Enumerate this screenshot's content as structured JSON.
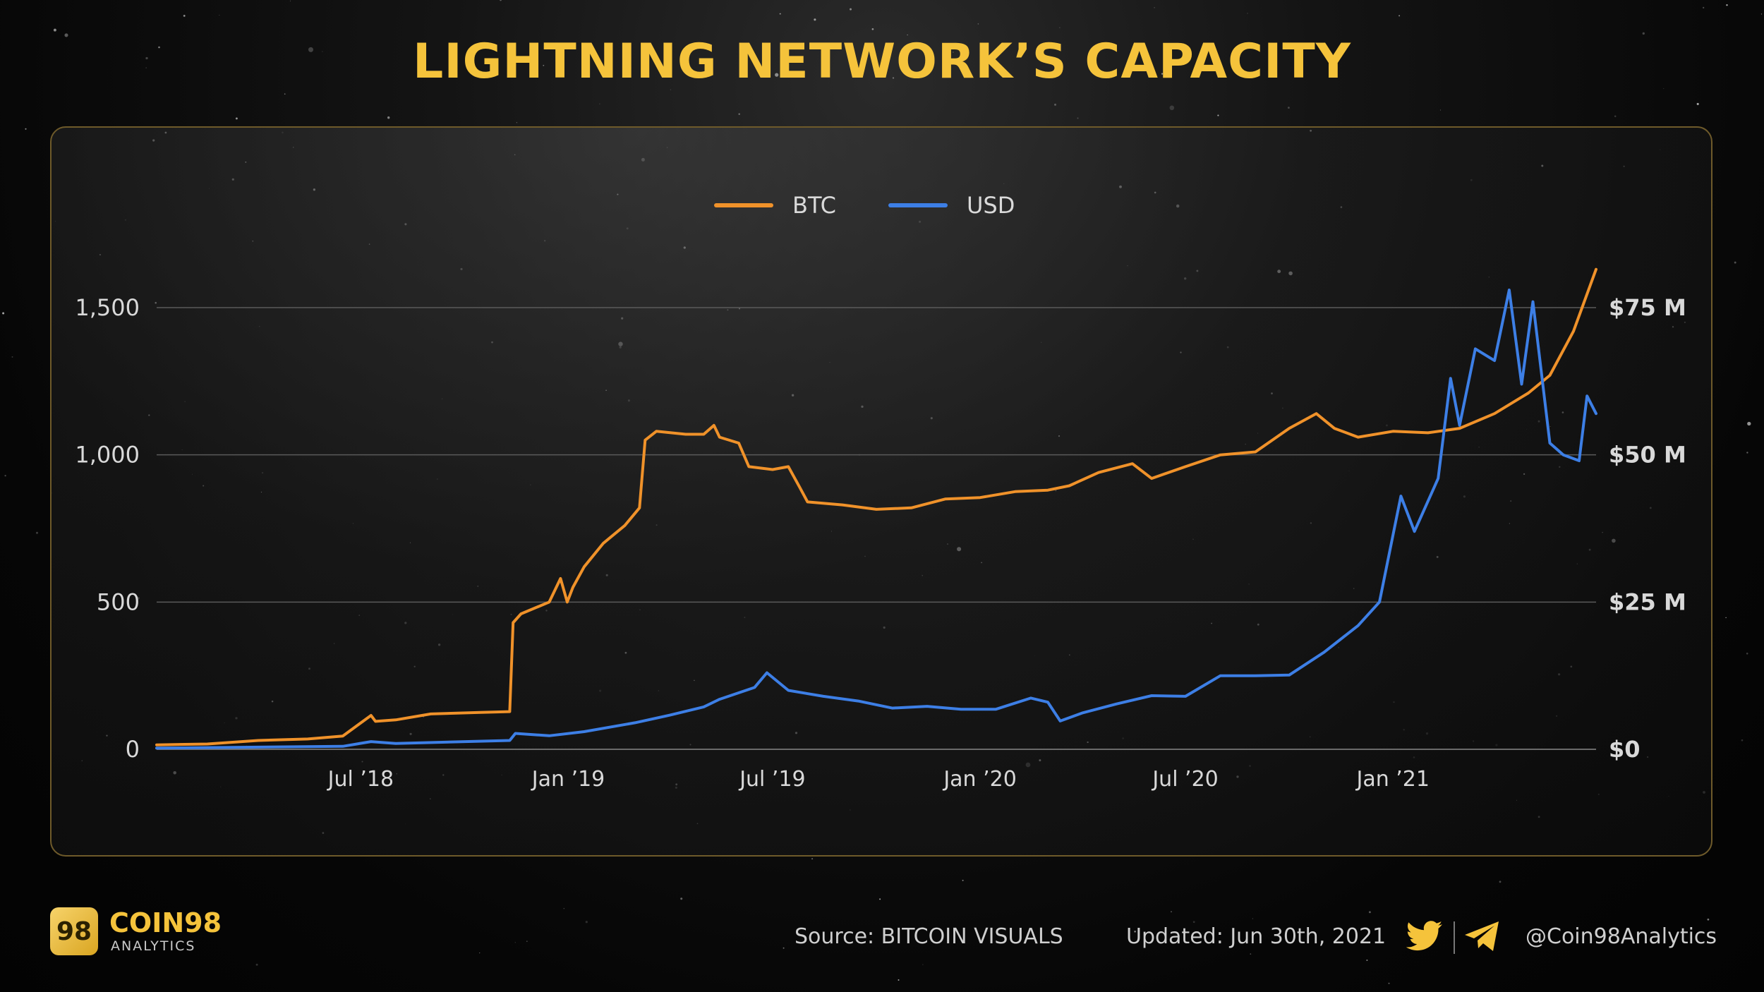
{
  "page": {
    "title": "LIGHTNING NETWORK’S CAPACITY"
  },
  "chart_data": {
    "type": "line",
    "title": "LIGHTNING NETWORK’S CAPACITY",
    "legend": {
      "placement": "top-center",
      "entries": [
        "BTC",
        "USD"
      ]
    },
    "x_ticks": [
      "Jul ’18",
      "Jan ’19",
      "Jul ’19",
      "Jan ’20",
      "Jul ’20",
      "Jan ’21"
    ],
    "x_tick_dates": [
      "2018-07-01",
      "2019-01-01",
      "2019-07-01",
      "2020-01-01",
      "2020-07-01",
      "2021-01-01"
    ],
    "xlim": [
      "2018-01-01",
      "2021-06-30"
    ],
    "y_left": {
      "ticks": [
        "0",
        "500",
        "1,000",
        "1,500"
      ],
      "ylim": [
        0,
        1500
      ]
    },
    "y_right": {
      "ticks": [
        "$0",
        "$25 M",
        "$50 M",
        "$75 M"
      ],
      "ylim": [
        0,
        75000000
      ]
    },
    "grid": true,
    "colors": {
      "BTC": "#f0922a",
      "USD": "#3d7fe6",
      "title": "#f5c33b"
    },
    "series": [
      {
        "name": "BTC",
        "axis": "left",
        "points": [
          [
            "2018-01-01",
            15
          ],
          [
            "2018-02-15",
            18
          ],
          [
            "2018-04-01",
            30
          ],
          [
            "2018-05-15",
            35
          ],
          [
            "2018-06-15",
            45
          ],
          [
            "2018-07-10",
            115
          ],
          [
            "2018-07-14",
            95
          ],
          [
            "2018-08-01",
            100
          ],
          [
            "2018-09-01",
            120
          ],
          [
            "2018-10-15",
            125
          ],
          [
            "2018-11-10",
            128
          ],
          [
            "2018-11-13",
            430
          ],
          [
            "2018-11-20",
            460
          ],
          [
            "2018-12-15",
            500
          ],
          [
            "2018-12-25",
            580
          ],
          [
            "2018-12-31",
            500
          ],
          [
            "2019-01-05",
            550
          ],
          [
            "2019-01-15",
            620
          ],
          [
            "2019-02-01",
            700
          ],
          [
            "2019-02-20",
            760
          ],
          [
            "2019-03-05",
            820
          ],
          [
            "2019-03-10",
            1050
          ],
          [
            "2019-03-20",
            1080
          ],
          [
            "2019-04-15",
            1070
          ],
          [
            "2019-05-01",
            1070
          ],
          [
            "2019-05-10",
            1100
          ],
          [
            "2019-05-15",
            1060
          ],
          [
            "2019-06-01",
            1040
          ],
          [
            "2019-06-10",
            960
          ],
          [
            "2019-07-01",
            950
          ],
          [
            "2019-07-15",
            960
          ],
          [
            "2019-07-25",
            890
          ],
          [
            "2019-08-01",
            840
          ],
          [
            "2019-09-01",
            830
          ],
          [
            "2019-10-01",
            815
          ],
          [
            "2019-11-01",
            820
          ],
          [
            "2019-12-01",
            850
          ],
          [
            "2020-01-01",
            855
          ],
          [
            "2020-02-01",
            875
          ],
          [
            "2020-03-01",
            880
          ],
          [
            "2020-03-20",
            895
          ],
          [
            "2020-04-15",
            940
          ],
          [
            "2020-05-15",
            970
          ],
          [
            "2020-06-01",
            920
          ],
          [
            "2020-07-01",
            960
          ],
          [
            "2020-08-01",
            1000
          ],
          [
            "2020-09-01",
            1010
          ],
          [
            "2020-10-01",
            1090
          ],
          [
            "2020-10-25",
            1140
          ],
          [
            "2020-11-10",
            1090
          ],
          [
            "2020-12-01",
            1060
          ],
          [
            "2021-01-01",
            1080
          ],
          [
            "2021-02-01",
            1075
          ],
          [
            "2021-03-01",
            1090
          ],
          [
            "2021-04-01",
            1140
          ],
          [
            "2021-05-01",
            1210
          ],
          [
            "2021-05-20",
            1270
          ],
          [
            "2021-06-10",
            1420
          ],
          [
            "2021-06-30",
            1630
          ]
        ]
      },
      {
        "name": "USD",
        "axis": "right",
        "points": [
          [
            "2018-01-01",
            200000
          ],
          [
            "2018-06-15",
            500000
          ],
          [
            "2018-07-10",
            1300000
          ],
          [
            "2018-08-01",
            1000000
          ],
          [
            "2018-11-10",
            1500000
          ],
          [
            "2018-11-15",
            2700000
          ],
          [
            "2018-12-15",
            2300000
          ],
          [
            "2019-01-15",
            3000000
          ],
          [
            "2019-03-01",
            4500000
          ],
          [
            "2019-04-01",
            5800000
          ],
          [
            "2019-05-01",
            7200000
          ],
          [
            "2019-05-15",
            8500000
          ],
          [
            "2019-06-15",
            10500000
          ],
          [
            "2019-06-26",
            13000000
          ],
          [
            "2019-07-15",
            10000000
          ],
          [
            "2019-08-15",
            9000000
          ],
          [
            "2019-09-15",
            8200000
          ],
          [
            "2019-10-15",
            7000000
          ],
          [
            "2019-11-15",
            7300000
          ],
          [
            "2019-12-15",
            6800000
          ],
          [
            "2020-01-15",
            6800000
          ],
          [
            "2020-02-15",
            8700000
          ],
          [
            "2020-03-01",
            8000000
          ],
          [
            "2020-03-12",
            4800000
          ],
          [
            "2020-04-01",
            6200000
          ],
          [
            "2020-05-01",
            7700000
          ],
          [
            "2020-06-01",
            9100000
          ],
          [
            "2020-07-01",
            9000000
          ],
          [
            "2020-08-01",
            12500000
          ],
          [
            "2020-09-01",
            12500000
          ],
          [
            "2020-10-01",
            12600000
          ],
          [
            "2020-11-01",
            16500000
          ],
          [
            "2020-12-01",
            21000000
          ],
          [
            "2020-12-20",
            25000000
          ],
          [
            "2021-01-08",
            43000000
          ],
          [
            "2021-01-20",
            37000000
          ],
          [
            "2021-02-10",
            46000000
          ],
          [
            "2021-02-21",
            63000000
          ],
          [
            "2021-03-01",
            55000000
          ],
          [
            "2021-03-15",
            68000000
          ],
          [
            "2021-04-01",
            66000000
          ],
          [
            "2021-04-14",
            78000000
          ],
          [
            "2021-04-25",
            62000000
          ],
          [
            "2021-05-05",
            76000000
          ],
          [
            "2021-05-20",
            52000000
          ],
          [
            "2021-06-01",
            50000000
          ],
          [
            "2021-06-15",
            49000000
          ],
          [
            "2021-06-22",
            60000000
          ],
          [
            "2021-06-30",
            57000000
          ]
        ]
      }
    ]
  },
  "footer": {
    "logo_mark": "98",
    "brand": "COIN98",
    "brand_sub": "ANALYTICS",
    "source": "Source: BITCOIN VISUALS",
    "updated": "Updated: Jun 30th, 2021",
    "handle": "@Coin98Analytics",
    "icons": [
      "twitter-icon",
      "telegram-icon"
    ]
  }
}
